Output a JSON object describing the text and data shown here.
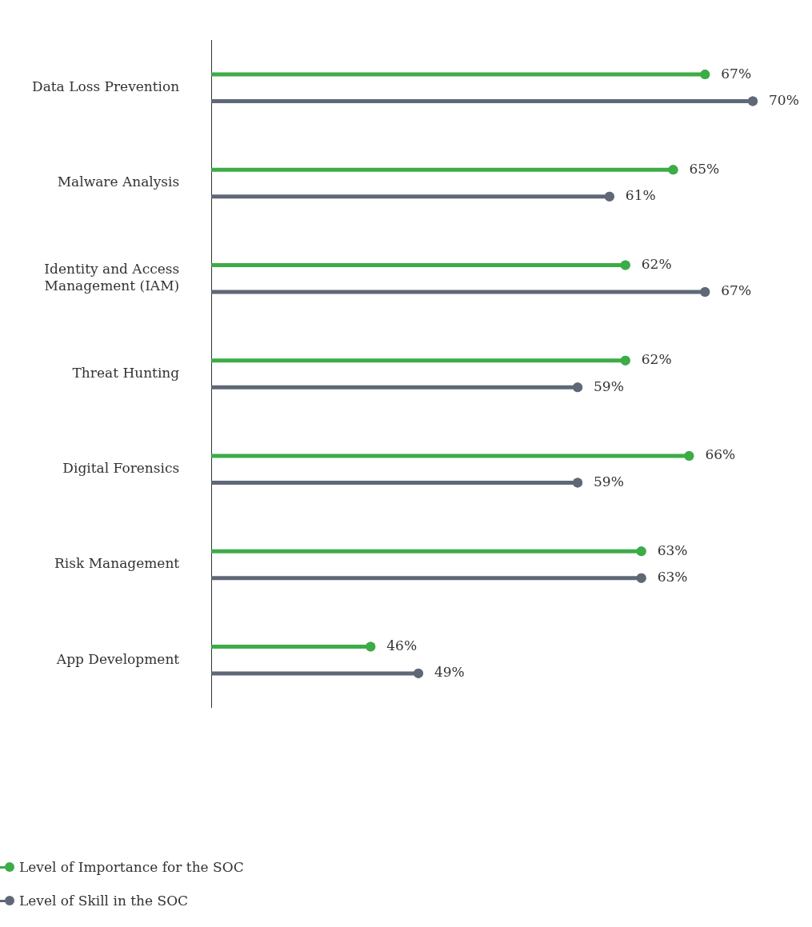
{
  "chart_data": {
    "type": "lollipop",
    "orientation": "horizontal",
    "categories": [
      "Data Loss Prevention",
      "Malware Analysis",
      "Identity and Access Management (IAM)",
      "Threat Hunting",
      "Digital Forensics",
      "Risk Management",
      "App Development"
    ],
    "series": [
      {
        "name": "Level of Importance for the SOC",
        "color": "#3dac47",
        "values": [
          67,
          65,
          62,
          62,
          66,
          63,
          46
        ],
        "value_labels": [
          "67%",
          "65%",
          "62%",
          "62%",
          "66%",
          "63%",
          "46%"
        ]
      },
      {
        "name": "Level of Skill in the SOC",
        "color": "#5f6876",
        "values": [
          70,
          61,
          67,
          59,
          59,
          63,
          49
        ],
        "value_labels": [
          "70%",
          "61%",
          "67%",
          "59%",
          "59%",
          "63%",
          "49%"
        ]
      }
    ],
    "xlim": [
      36,
      70
    ],
    "tick_labels": "y",
    "legend": "bottom left",
    "marker": "circle"
  }
}
